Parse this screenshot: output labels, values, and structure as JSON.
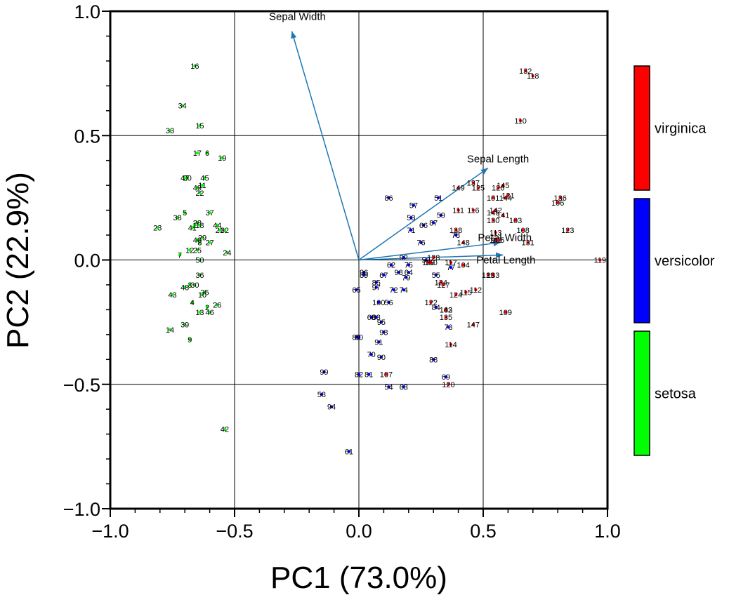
{
  "chart_data": {
    "type": "scatter",
    "subtype": "pca-biplot",
    "xlabel": "PC1 (73.0%)",
    "ylabel": "PC2 (22.9%)",
    "xlim": [
      -1.0,
      1.0
    ],
    "ylim": [
      -1.0,
      1.0
    ],
    "xticks": [
      "−1.0",
      "−0.5",
      "0.0",
      "0.5",
      "1.0"
    ],
    "yticks": [
      "−1.0",
      "−0.5",
      "0.0",
      "0.5",
      "1.0"
    ],
    "grid": true,
    "legend_position": "right",
    "legend": [
      {
        "name": "virginica",
        "color": "#ff0000"
      },
      {
        "name": "versicolor",
        "color": "#0000ff"
      },
      {
        "name": "setosa",
        "color": "#00ff00"
      }
    ],
    "loadings_color": "#1f77b4",
    "loadings": [
      {
        "name": "Sepal Width",
        "x": -0.27,
        "y": 0.92
      },
      {
        "name": "Sepal Length",
        "x": 0.52,
        "y": 0.37
      },
      {
        "name": "Petal Width",
        "x": 0.57,
        "y": 0.07
      },
      {
        "name": "Petal Length",
        "x": 0.58,
        "y": 0.02
      }
    ],
    "series": [
      {
        "name": "setosa",
        "color": "#00ff00",
        "points": [
          {
            "id": "16",
            "x": -0.66,
            "y": 0.78
          },
          {
            "id": "34",
            "x": -0.71,
            "y": 0.62
          },
          {
            "id": "33",
            "x": -0.76,
            "y": 0.52
          },
          {
            "id": "15",
            "x": -0.64,
            "y": 0.54
          },
          {
            "id": "17",
            "x": -0.65,
            "y": 0.43
          },
          {
            "id": "6",
            "x": -0.61,
            "y": 0.43
          },
          {
            "id": "19",
            "x": -0.55,
            "y": 0.41
          },
          {
            "id": "20",
            "x": -0.69,
            "y": 0.33
          },
          {
            "id": "47",
            "x": -0.7,
            "y": 0.33
          },
          {
            "id": "45",
            "x": -0.62,
            "y": 0.33
          },
          {
            "id": "11",
            "x": -0.63,
            "y": 0.3
          },
          {
            "id": "49",
            "x": -0.65,
            "y": 0.29
          },
          {
            "id": "22",
            "x": -0.64,
            "y": 0.27
          },
          {
            "id": "37",
            "x": -0.6,
            "y": 0.19
          },
          {
            "id": "5",
            "x": -0.7,
            "y": 0.19
          },
          {
            "id": "38",
            "x": -0.73,
            "y": 0.17
          },
          {
            "id": "28",
            "x": -0.65,
            "y": 0.15
          },
          {
            "id": "41",
            "x": -0.67,
            "y": 0.13
          },
          {
            "id": "18",
            "x": -0.64,
            "y": 0.14
          },
          {
            "id": "1",
            "x": -0.66,
            "y": 0.14
          },
          {
            "id": "44",
            "x": -0.57,
            "y": 0.14
          },
          {
            "id": "21",
            "x": -0.56,
            "y": 0.12
          },
          {
            "id": "32",
            "x": -0.54,
            "y": 0.12
          },
          {
            "id": "23",
            "x": -0.81,
            "y": 0.13
          },
          {
            "id": "29",
            "x": -0.63,
            "y": 0.09
          },
          {
            "id": "40",
            "x": -0.65,
            "y": 0.08
          },
          {
            "id": "8",
            "x": -0.64,
            "y": 0.07
          },
          {
            "id": "27",
            "x": -0.6,
            "y": 0.07
          },
          {
            "id": "12",
            "x": -0.68,
            "y": 0.04
          },
          {
            "id": "25",
            "x": -0.65,
            "y": 0.04
          },
          {
            "id": "24",
            "x": -0.53,
            "y": 0.03
          },
          {
            "id": "7",
            "x": -0.72,
            "y": 0.02
          },
          {
            "id": "50",
            "x": -0.64,
            "y": 0.0
          },
          {
            "id": "36",
            "x": -0.64,
            "y": -0.06
          },
          {
            "id": "3",
            "x": -0.68,
            "y": -0.1
          },
          {
            "id": "30",
            "x": -0.66,
            "y": -0.1
          },
          {
            "id": "48",
            "x": -0.7,
            "y": -0.11
          },
          {
            "id": "35",
            "x": -0.62,
            "y": -0.13
          },
          {
            "id": "10",
            "x": -0.63,
            "y": -0.14
          },
          {
            "id": "43",
            "x": -0.75,
            "y": -0.14
          },
          {
            "id": "4",
            "x": -0.67,
            "y": -0.17
          },
          {
            "id": "26",
            "x": -0.57,
            "y": -0.18
          },
          {
            "id": "2",
            "x": -0.61,
            "y": -0.19
          },
          {
            "id": "46",
            "x": -0.6,
            "y": -0.21
          },
          {
            "id": "13",
            "x": -0.64,
            "y": -0.21
          },
          {
            "id": "39",
            "x": -0.7,
            "y": -0.26
          },
          {
            "id": "14",
            "x": -0.76,
            "y": -0.28
          },
          {
            "id": "9",
            "x": -0.68,
            "y": -0.32
          },
          {
            "id": "42",
            "x": -0.54,
            "y": -0.68
          }
        ]
      },
      {
        "name": "versicolor",
        "color": "#0000ff",
        "points": [
          {
            "id": "86",
            "x": 0.12,
            "y": 0.25
          },
          {
            "id": "57",
            "x": 0.22,
            "y": 0.22
          },
          {
            "id": "51",
            "x": 0.32,
            "y": 0.25
          },
          {
            "id": "53",
            "x": 0.21,
            "y": 0.17
          },
          {
            "id": "66",
            "x": 0.26,
            "y": 0.14
          },
          {
            "id": "87",
            "x": 0.3,
            "y": 0.15
          },
          {
            "id": "71",
            "x": 0.21,
            "y": 0.12
          },
          {
            "id": "76",
            "x": 0.25,
            "y": 0.07
          },
          {
            "id": "92",
            "x": 0.18,
            "y": 0.01
          },
          {
            "id": "62",
            "x": 0.13,
            "y": -0.02
          },
          {
            "id": "75",
            "x": 0.2,
            "y": -0.02
          },
          {
            "id": "64",
            "x": 0.2,
            "y": -0.05
          },
          {
            "id": "98",
            "x": 0.16,
            "y": -0.05
          },
          {
            "id": "79",
            "x": 0.19,
            "y": -0.07
          },
          {
            "id": "67",
            "x": 0.1,
            "y": -0.06
          },
          {
            "id": "96",
            "x": 0.02,
            "y": -0.05
          },
          {
            "id": "89",
            "x": 0.02,
            "y": -0.06
          },
          {
            "id": "85",
            "x": 0.07,
            "y": -0.09
          },
          {
            "id": "97",
            "x": 0.07,
            "y": -0.11
          },
          {
            "id": "72",
            "x": 0.14,
            "y": -0.12
          },
          {
            "id": "74",
            "x": 0.18,
            "y": -0.12
          },
          {
            "id": "65",
            "x": -0.01,
            "y": -0.12
          },
          {
            "id": "100",
            "x": 0.08,
            "y": -0.17
          },
          {
            "id": "56",
            "x": 0.12,
            "y": -0.17
          },
          {
            "id": "83",
            "x": 0.07,
            "y": -0.23
          },
          {
            "id": "68",
            "x": 0.05,
            "y": -0.23
          },
          {
            "id": "95",
            "x": 0.09,
            "y": -0.25
          },
          {
            "id": "93",
            "x": 0.1,
            "y": -0.29
          },
          {
            "id": "80",
            "x": -0.01,
            "y": -0.31
          },
          {
            "id": "60",
            "x": 0.0,
            "y": -0.31
          },
          {
            "id": "91",
            "x": 0.08,
            "y": -0.33
          },
          {
            "id": "70",
            "x": 0.05,
            "y": -0.38
          },
          {
            "id": "90",
            "x": 0.09,
            "y": -0.39
          },
          {
            "id": "99",
            "x": -0.14,
            "y": -0.45
          },
          {
            "id": "82",
            "x": 0.0,
            "y": -0.46
          },
          {
            "id": "81",
            "x": 0.04,
            "y": -0.46
          },
          {
            "id": "54",
            "x": 0.12,
            "y": -0.51
          },
          {
            "id": "58",
            "x": -0.15,
            "y": -0.54
          },
          {
            "id": "94",
            "x": -0.11,
            "y": -0.59
          },
          {
            "id": "61",
            "x": -0.04,
            "y": -0.77
          },
          {
            "id": "52",
            "x": 0.27,
            "y": 0.0
          },
          {
            "id": "55",
            "x": 0.31,
            "y": -0.06
          },
          {
            "id": "59",
            "x": 0.33,
            "y": 0.18
          },
          {
            "id": "63",
            "x": 0.18,
            "y": -0.51
          },
          {
            "id": "69",
            "x": 0.35,
            "y": -0.47
          },
          {
            "id": "73",
            "x": 0.36,
            "y": -0.27
          },
          {
            "id": "77",
            "x": 0.37,
            "y": -0.03
          },
          {
            "id": "78",
            "x": 0.39,
            "y": 0.1
          },
          {
            "id": "84",
            "x": 0.31,
            "y": -0.19
          },
          {
            "id": "88",
            "x": 0.3,
            "y": -0.4
          }
        ]
      },
      {
        "name": "virginica",
        "color": "#ff0000",
        "points": [
          {
            "id": "132",
            "x": 0.67,
            "y": 0.76
          },
          {
            "id": "118",
            "x": 0.7,
            "y": 0.74
          },
          {
            "id": "110",
            "x": 0.65,
            "y": 0.56
          },
          {
            "id": "137",
            "x": 0.46,
            "y": 0.31
          },
          {
            "id": "149",
            "x": 0.4,
            "y": 0.29
          },
          {
            "id": "125",
            "x": 0.48,
            "y": 0.29
          },
          {
            "id": "145",
            "x": 0.58,
            "y": 0.3
          },
          {
            "id": "126",
            "x": 0.56,
            "y": 0.29
          },
          {
            "id": "121",
            "x": 0.6,
            "y": 0.26
          },
          {
            "id": "101",
            "x": 0.54,
            "y": 0.25
          },
          {
            "id": "144",
            "x": 0.59,
            "y": 0.25
          },
          {
            "id": "136",
            "x": 0.81,
            "y": 0.25
          },
          {
            "id": "106",
            "x": 0.8,
            "y": 0.23
          },
          {
            "id": "111",
            "x": 0.4,
            "y": 0.2
          },
          {
            "id": "116",
            "x": 0.46,
            "y": 0.2
          },
          {
            "id": "142",
            "x": 0.55,
            "y": 0.2
          },
          {
            "id": "146",
            "x": 0.54,
            "y": 0.19
          },
          {
            "id": "141",
            "x": 0.58,
            "y": 0.18
          },
          {
            "id": "130",
            "x": 0.54,
            "y": 0.16
          },
          {
            "id": "103",
            "x": 0.63,
            "y": 0.16
          },
          {
            "id": "138",
            "x": 0.39,
            "y": 0.12
          },
          {
            "id": "113",
            "x": 0.55,
            "y": 0.11
          },
          {
            "id": "108",
            "x": 0.66,
            "y": 0.12
          },
          {
            "id": "123",
            "x": 0.84,
            "y": 0.12
          },
          {
            "id": "140",
            "x": 0.55,
            "y": 0.08
          },
          {
            "id": "148",
            "x": 0.42,
            "y": 0.07
          },
          {
            "id": "105",
            "x": 0.56,
            "y": 0.08
          },
          {
            "id": "131",
            "x": 0.68,
            "y": 0.07
          },
          {
            "id": "128",
            "x": 0.3,
            "y": 0.01
          },
          {
            "id": "139",
            "x": 0.28,
            "y": -0.01
          },
          {
            "id": "150",
            "x": 0.29,
            "y": -0.01
          },
          {
            "id": "104",
            "x": 0.42,
            "y": -0.02
          },
          {
            "id": "119",
            "x": 0.97,
            "y": 0.0
          },
          {
            "id": "129",
            "x": 0.52,
            "y": -0.06
          },
          {
            "id": "133",
            "x": 0.54,
            "y": -0.06
          },
          {
            "id": "134",
            "x": 0.33,
            "y": -0.09
          },
          {
            "id": "127",
            "x": 0.34,
            "y": -0.1
          },
          {
            "id": "115",
            "x": 0.43,
            "y": -0.13
          },
          {
            "id": "112",
            "x": 0.47,
            "y": -0.12
          },
          {
            "id": "124",
            "x": 0.39,
            "y": -0.14
          },
          {
            "id": "122",
            "x": 0.29,
            "y": -0.17
          },
          {
            "id": "102",
            "x": 0.35,
            "y": -0.2
          },
          {
            "id": "143",
            "x": 0.35,
            "y": -0.2
          },
          {
            "id": "109",
            "x": 0.59,
            "y": -0.21
          },
          {
            "id": "135",
            "x": 0.35,
            "y": -0.23
          },
          {
            "id": "147",
            "x": 0.46,
            "y": -0.26
          },
          {
            "id": "114",
            "x": 0.37,
            "y": -0.34
          },
          {
            "id": "107",
            "x": 0.11,
            "y": -0.46
          },
          {
            "id": "120",
            "x": 0.36,
            "y": -0.5
          },
          {
            "id": "117",
            "x": 0.37,
            "y": -0.01
          }
        ]
      }
    ]
  }
}
